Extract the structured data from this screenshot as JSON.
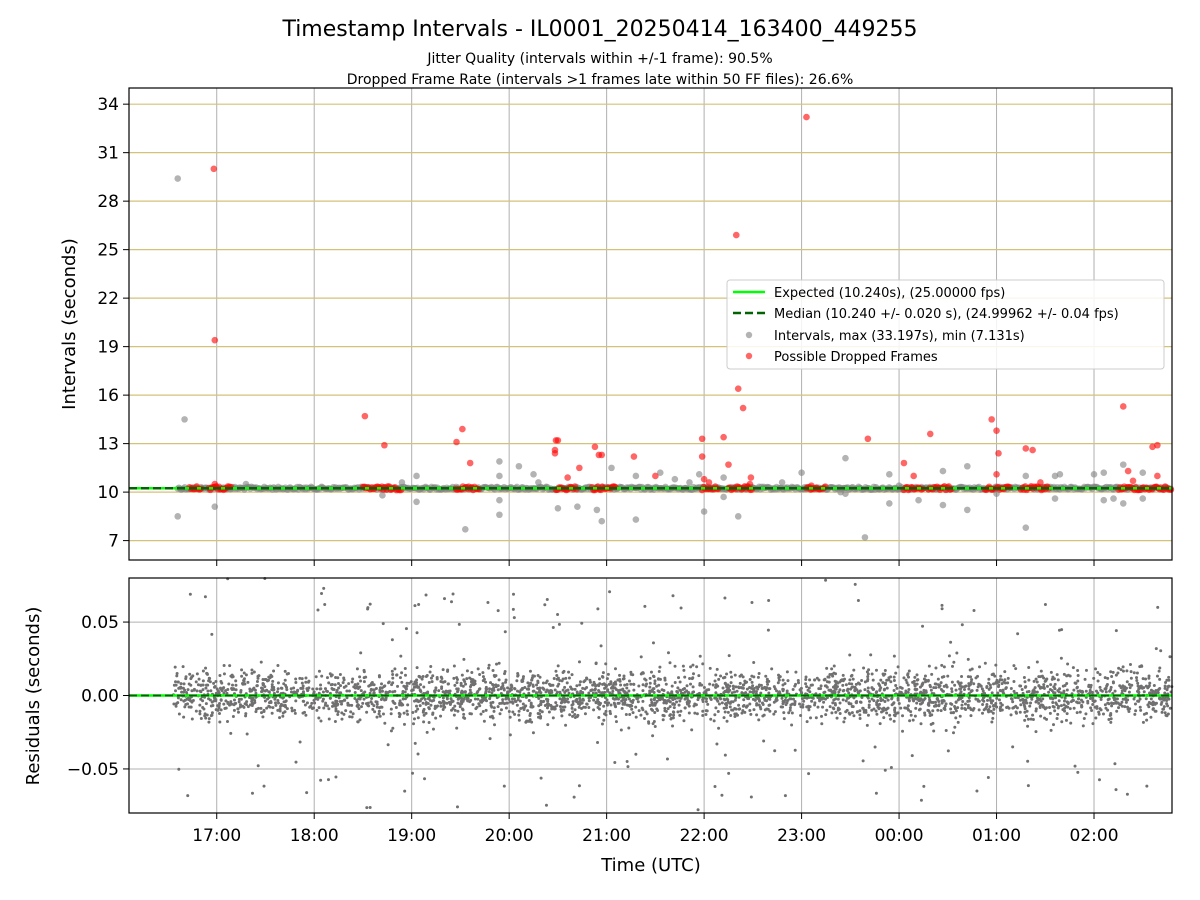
{
  "figure": {
    "title": "Timestamp Intervals - IL0001_20250414_163400_449255",
    "subtitle_1": "Jitter Quality (intervals within +/-1 frame): 90.5%",
    "subtitle_2": "Dropped Frame Rate (intervals >1 frames late within 50 FF files): 26.6%"
  },
  "colors": {
    "expected": "#00ff00",
    "median": "#006400",
    "intervals": "#808080",
    "dropped": "#ff0000",
    "grid": "#b0b0b0",
    "ygrid_top": "#d4c27a"
  },
  "chart_data": [
    {
      "type": "scatter",
      "ylabel": "Intervals (seconds)",
      "xlim_hours": [
        16.1,
        26.8
      ],
      "ylim": [
        5.8,
        35.0
      ],
      "y_ticks": [
        "7",
        "10",
        "13",
        "16",
        "19",
        "22",
        "25",
        "28",
        "31",
        "34"
      ],
      "x_ticks": [
        "17:00",
        "18:00",
        "19:00",
        "20:00",
        "21:00",
        "22:00",
        "23:00",
        "00:00",
        "01:00",
        "02:00"
      ],
      "grid": true,
      "legend_position": "center-right",
      "legend": [
        "Expected (10.240s), (25.00000 fps)",
        "Median (10.240 +/- 0.020 s), (24.99962 +/- 0.04 fps)",
        "Intervals, max (33.197s), min (7.131s)",
        "Possible Dropped Frames"
      ],
      "expected_interval": 10.24,
      "median_interval": 10.24,
      "series": [
        {
          "kind": "intervals",
          "points": [
            [
              16.6,
              29.4
            ],
            [
              16.6,
              8.5
            ],
            [
              16.67,
              14.5
            ],
            [
              16.98,
              9.1
            ],
            [
              17.3,
              10.5
            ],
            [
              18.7,
              9.8
            ],
            [
              18.9,
              10.6
            ],
            [
              19.05,
              11.0
            ],
            [
              19.05,
              9.4
            ],
            [
              19.55,
              7.7
            ],
            [
              19.9,
              11.9
            ],
            [
              19.9,
              11.0
            ],
            [
              19.9,
              9.5
            ],
            [
              19.9,
              8.6
            ],
            [
              20.1,
              11.6
            ],
            [
              20.25,
              11.1
            ],
            [
              20.3,
              10.6
            ],
            [
              20.5,
              9.0
            ],
            [
              20.7,
              9.1
            ],
            [
              20.9,
              8.9
            ],
            [
              20.95,
              8.2
            ],
            [
              21.05,
              11.5
            ],
            [
              21.3,
              8.3
            ],
            [
              21.3,
              11.0
            ],
            [
              21.55,
              11.2
            ],
            [
              21.7,
              10.8
            ],
            [
              21.85,
              10.6
            ],
            [
              21.95,
              11.1
            ],
            [
              22.0,
              8.8
            ],
            [
              22.2,
              10.9
            ],
            [
              22.2,
              9.7
            ],
            [
              22.35,
              8.5
            ],
            [
              22.8,
              10.6
            ],
            [
              23.0,
              11.2
            ],
            [
              23.4,
              10.0
            ],
            [
              23.45,
              12.1
            ],
            [
              23.45,
              9.9
            ],
            [
              23.65,
              7.2
            ],
            [
              23.9,
              11.1
            ],
            [
              23.9,
              9.3
            ],
            [
              24.0,
              10.4
            ],
            [
              24.2,
              9.5
            ],
            [
              24.45,
              9.2
            ],
            [
              24.45,
              11.3
            ],
            [
              24.7,
              11.6
            ],
            [
              24.7,
              8.9
            ],
            [
              25.0,
              9.9
            ],
            [
              25.3,
              11.0
            ],
            [
              25.3,
              7.8
            ],
            [
              25.6,
              11.0
            ],
            [
              25.6,
              9.6
            ],
            [
              25.65,
              11.1
            ],
            [
              26.0,
              11.1
            ],
            [
              26.1,
              11.2
            ],
            [
              26.1,
              9.5
            ],
            [
              26.2,
              9.6
            ],
            [
              26.3,
              11.7
            ],
            [
              26.3,
              9.3
            ],
            [
              26.5,
              11.2
            ],
            [
              26.5,
              9.6
            ]
          ]
        },
        {
          "kind": "dropped",
          "points": [
            [
              16.97,
              30.0
            ],
            [
              16.98,
              19.4
            ],
            [
              16.98,
              10.5
            ],
            [
              18.52,
              14.7
            ],
            [
              18.72,
              12.9
            ],
            [
              19.46,
              13.1
            ],
            [
              19.52,
              13.9
            ],
            [
              19.6,
              11.8
            ],
            [
              20.48,
              13.2
            ],
            [
              20.5,
              13.2
            ],
            [
              20.47,
              12.6
            ],
            [
              20.47,
              12.4
            ],
            [
              20.6,
              10.9
            ],
            [
              20.72,
              11.5
            ],
            [
              20.88,
              12.8
            ],
            [
              20.92,
              12.3
            ],
            [
              20.95,
              12.3
            ],
            [
              21.28,
              12.2
            ],
            [
              21.5,
              11.0
            ],
            [
              21.98,
              13.3
            ],
            [
              21.98,
              12.2
            ],
            [
              22.0,
              10.8
            ],
            [
              22.05,
              10.6
            ],
            [
              22.2,
              13.4
            ],
            [
              22.25,
              11.7
            ],
            [
              22.33,
              25.9
            ],
            [
              22.35,
              16.4
            ],
            [
              22.4,
              15.2
            ],
            [
              22.47,
              10.5
            ],
            [
              22.48,
              10.9
            ],
            [
              23.05,
              33.2
            ],
            [
              23.1,
              10.4
            ],
            [
              23.68,
              13.3
            ],
            [
              24.05,
              11.8
            ],
            [
              24.15,
              11.0
            ],
            [
              24.32,
              13.6
            ],
            [
              24.95,
              14.5
            ],
            [
              25.0,
              13.8
            ],
            [
              25.0,
              11.1
            ],
            [
              25.02,
              12.4
            ],
            [
              25.3,
              12.7
            ],
            [
              25.37,
              12.6
            ],
            [
              25.45,
              10.6
            ],
            [
              26.3,
              15.3
            ],
            [
              26.35,
              11.3
            ],
            [
              26.4,
              10.7
            ],
            [
              26.6,
              12.8
            ],
            [
              26.65,
              12.9
            ],
            [
              26.65,
              11.0
            ]
          ]
        }
      ]
    },
    {
      "type": "scatter",
      "ylabel": "Residuals (seconds)",
      "xlabel": "Time (UTC)",
      "xlim_hours": [
        16.1,
        26.8
      ],
      "ylim": [
        -0.08,
        0.08
      ],
      "y_ticks": [
        "−0.05",
        "0.00",
        "0.05"
      ],
      "x_ticks": [
        "17:00",
        "18:00",
        "19:00",
        "20:00",
        "21:00",
        "22:00",
        "23:00",
        "00:00",
        "01:00",
        "02:00"
      ],
      "grid": true,
      "residual_start_hour": 16.55,
      "residual_end_hour": 26.8,
      "residual_points_shown": 3400,
      "residual_std": 0.012
    }
  ]
}
